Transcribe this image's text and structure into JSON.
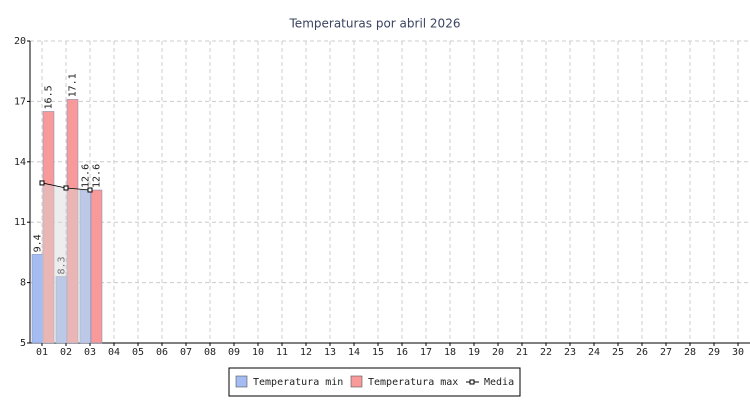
{
  "chart_data": {
    "type": "bar",
    "title": "Temperaturas por abril 2026",
    "categories": [
      "01",
      "02",
      "03",
      "04",
      "05",
      "06",
      "07",
      "08",
      "09",
      "10",
      "11",
      "12",
      "13",
      "14",
      "15",
      "16",
      "17",
      "18",
      "19",
      "20",
      "21",
      "22",
      "23",
      "24",
      "25",
      "26",
      "27",
      "28",
      "29",
      "30"
    ],
    "series": [
      {
        "name": "Temperatura min",
        "color": "#a4bcf2",
        "values": [
          9.4,
          8.3,
          12.6,
          null,
          null,
          null,
          null,
          null,
          null,
          null,
          null,
          null,
          null,
          null,
          null,
          null,
          null,
          null,
          null,
          null,
          null,
          null,
          null,
          null,
          null,
          null,
          null,
          null,
          null,
          null
        ]
      },
      {
        "name": "Temperatura max",
        "color": "#f89a9a",
        "values": [
          16.5,
          17.1,
          12.6,
          null,
          null,
          null,
          null,
          null,
          null,
          null,
          null,
          null,
          null,
          null,
          null,
          null,
          null,
          null,
          null,
          null,
          null,
          null,
          null,
          null,
          null,
          null,
          null,
          null,
          null,
          null
        ]
      },
      {
        "name": "Media",
        "type": "line",
        "color": "#000000",
        "values": [
          12.95,
          12.7,
          12.6,
          null,
          null,
          null,
          null,
          null,
          null,
          null,
          null,
          null,
          null,
          null,
          null,
          null,
          null,
          null,
          null,
          null,
          null,
          null,
          null,
          null,
          null,
          null,
          null,
          null,
          null,
          null
        ]
      }
    ],
    "ylim": [
      5,
      20
    ],
    "yticks": [
      5,
      8,
      11,
      14,
      17,
      20
    ],
    "grid": true
  }
}
